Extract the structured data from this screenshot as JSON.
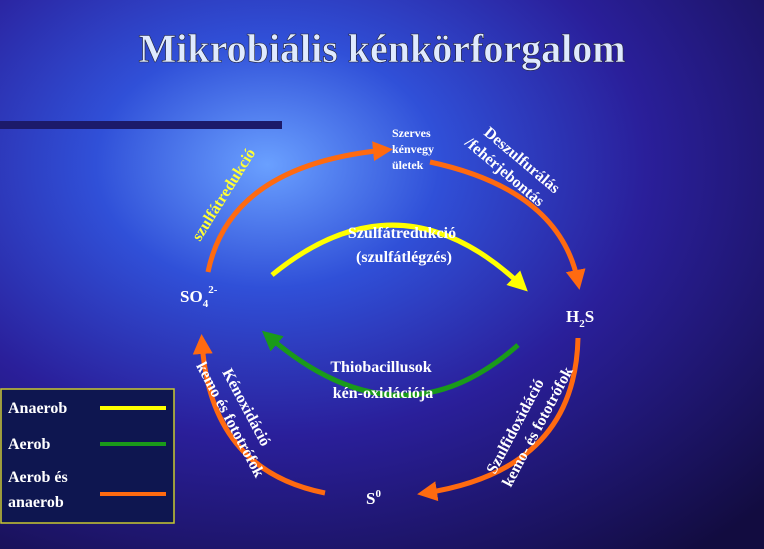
{
  "title": "Mikrobiális kénkörforgalom",
  "nodes": {
    "so4": {
      "base": "SO",
      "sub": "4",
      "sup": "2-"
    },
    "organic": {
      "lines": [
        "Szerves",
        "kénvegy",
        "ületek"
      ]
    },
    "h2s": {
      "base": "H",
      "sub": "2",
      "tail": "S"
    },
    "s0": {
      "base": "S",
      "sup": "0"
    }
  },
  "edges": {
    "top_left": {
      "label": "szulfátredukció",
      "color": "#ffff33"
    },
    "top_right": {
      "lines": [
        "Deszulfurálás",
        "/fehérjebontás"
      ]
    },
    "inner_top": {
      "lines": [
        "Szulfátredukció",
        "(szulfátlégzés)"
      ]
    },
    "inner_bottom": {
      "lines": [
        "Thiobacillusok",
        "kén-oxidációja"
      ]
    },
    "bottom_left": {
      "lines": [
        "Kénoxidáció",
        "kemo és fototrófok"
      ]
    },
    "bottom_right": {
      "lines": [
        "Szulfidoxidáció",
        "kemo- és fototrófok"
      ]
    }
  },
  "legend": {
    "items": [
      {
        "label": "Anaerob",
        "color": "#ffff00"
      },
      {
        "label": "Aerob",
        "color": "#1a9a1a"
      },
      {
        "label": [
          "Aerob és",
          "anaerob"
        ],
        "color": "#ff6a10"
      }
    ]
  }
}
